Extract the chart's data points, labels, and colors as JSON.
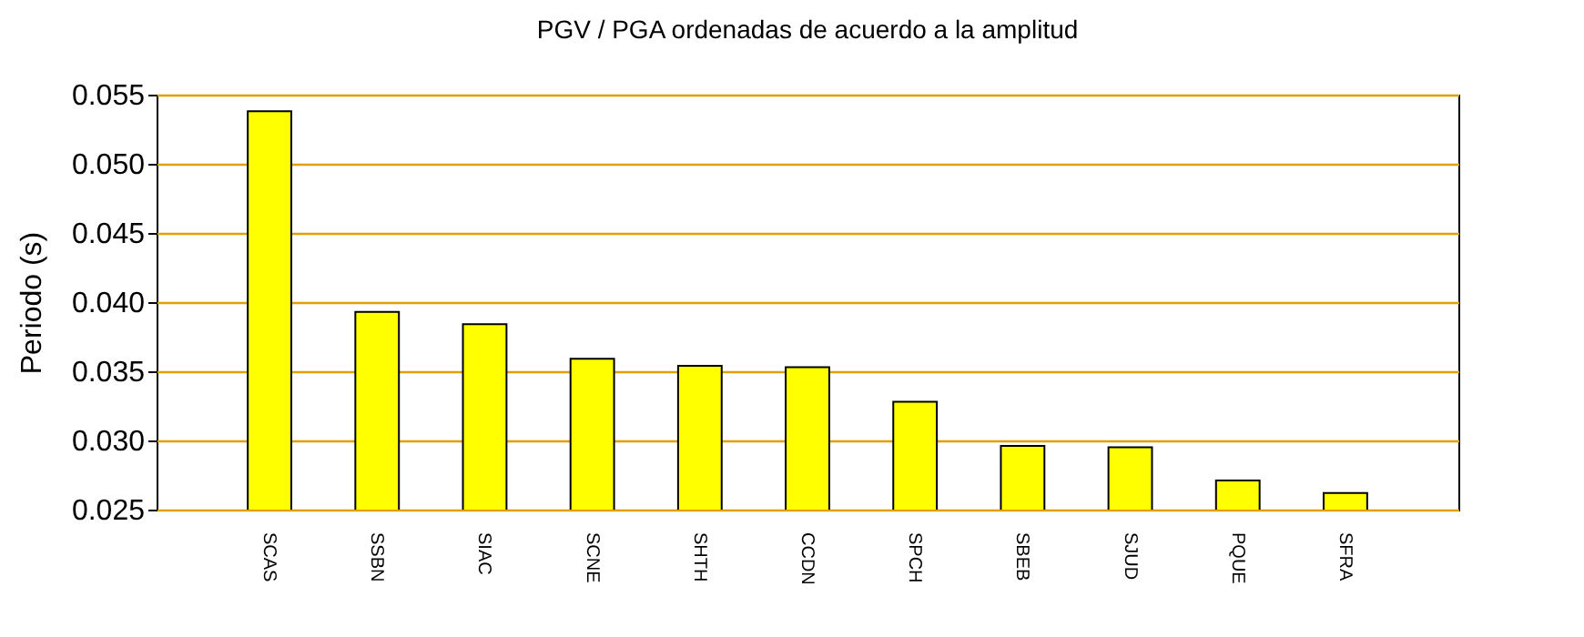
{
  "chart_data": {
    "type": "bar",
    "title": "PGV / PGA ordenadas de acuerdo a la amplitud",
    "ylabel": "Periodo (s)",
    "categories": [
      "SCAS",
      "SSBN",
      "SIAC",
      "SCNE",
      "SHTH",
      "CCDN",
      "SPCH",
      "SBEB",
      "SJUD",
      "PQUE",
      "SFRA"
    ],
    "values": [
      0.0538,
      0.0393,
      0.0384,
      0.0359,
      0.0354,
      0.0353,
      0.0328,
      0.0296,
      0.0295,
      0.0271,
      0.0262
    ],
    "color": "#ffff00",
    "ylim": [
      0.025,
      0.055
    ],
    "yticks": [
      0.025,
      {
        "value": 0.03,
        "label": "0.030"
      },
      0.035,
      {
        "value": 0.04,
        "label": "0.040"
      },
      0.045,
      {
        "value": 0.05,
        "label": "0.050"
      },
      0.055
    ],
    "grid": "y"
  }
}
